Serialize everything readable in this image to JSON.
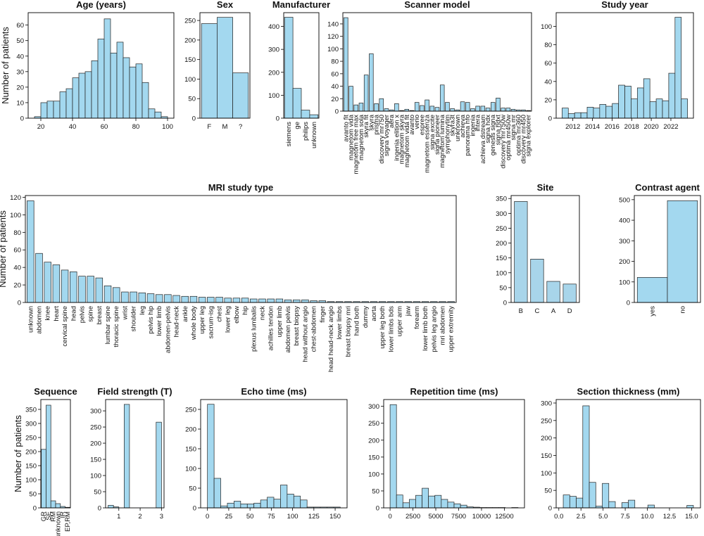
{
  "chart_data": [
    {
      "type": "histogram",
      "title": "Age (years)",
      "ylabel": "Number of patients",
      "color": "#a3d8ef",
      "bins": [
        16,
        20,
        24,
        28,
        32,
        36,
        40,
        44,
        48,
        52,
        56,
        60,
        64,
        68,
        72,
        76,
        80,
        84,
        88,
        92,
        96,
        100
      ],
      "values": [
        1,
        10,
        11,
        11,
        17,
        19,
        26,
        29,
        30,
        37,
        51,
        64,
        42,
        49,
        39,
        33,
        35,
        23,
        6,
        4,
        1
      ],
      "xlim": [
        12,
        104
      ],
      "xticks": [
        20,
        40,
        60,
        80,
        100
      ],
      "ylim": [
        0,
        68
      ],
      "yticks": [
        0,
        10,
        20,
        30,
        40,
        50,
        60
      ]
    },
    {
      "type": "bar",
      "title": "Sex",
      "color": "#a3d8ef",
      "categories": [
        "F",
        "M",
        "?"
      ],
      "values": [
        242,
        258,
        116
      ],
      "ylim": [
        0,
        270
      ],
      "yticks": [
        0,
        50,
        100,
        150,
        200,
        250
      ]
    },
    {
      "type": "bar",
      "title": "Manufacturer",
      "color": "#a3d8ef",
      "categories": [
        "siemens",
        "ge",
        "philips",
        "unknown"
      ],
      "values": [
        440,
        130,
        35,
        15
      ],
      "ylim": [
        0,
        460
      ],
      "yticks": [
        0,
        100,
        200,
        300,
        400
      ]
    },
    {
      "type": "bar",
      "title": "Scanner model",
      "color": "#a3d8ef",
      "categories": [
        "avanto fit",
        "magnetom vida",
        "magnetom free max",
        "magnetom sola",
        "skyra fit",
        "skyra",
        "prisma",
        "discovery mr750",
        "signa voyager",
        "aera",
        "ingenia elition x",
        "magnetom skyra",
        "magnetom vida fit",
        "avanto",
        "verio",
        "espree",
        "magnetom essenza",
        "signa excite",
        "signa pioneer",
        "magnetom lumina",
        "symphonytim",
        "skyra3t",
        "unknown",
        "achieva",
        "panorama hfo",
        "ingenia",
        "intera",
        "achieva dstream",
        "signa hdx",
        "genesis signa",
        "signa hdxt",
        "discovery mr750w",
        "optima mr450w",
        "signa mr",
        "optima mr360",
        "discovery mr450",
        "signa explorer"
      ],
      "values": [
        150,
        40,
        10,
        13,
        58,
        92,
        12,
        20,
        4,
        2,
        12,
        1,
        3,
        1,
        14,
        9,
        18,
        8,
        6,
        42,
        14,
        4,
        2,
        15,
        14,
        4,
        8,
        8,
        5,
        14,
        21,
        5,
        5,
        3,
        2,
        2,
        1
      ],
      "ylim": [
        0,
        158
      ],
      "yticks": [
        0,
        20,
        40,
        60,
        80,
        100,
        120,
        140
      ]
    },
    {
      "type": "histogram",
      "title": "Study year",
      "color": "#a3d8ef",
      "bins": [
        2010.9,
        2011.54,
        2012.18,
        2012.82,
        2013.46,
        2014.1,
        2014.74,
        2015.38,
        2016.02,
        2016.66,
        2017.3,
        2017.94,
        2018.58,
        2019.22,
        2019.86,
        2020.5,
        2021.14,
        2021.78,
        2022.42,
        2023.06,
        2023.7
      ],
      "values": [
        11,
        5,
        6,
        6,
        12,
        11,
        15,
        13,
        16,
        36,
        35,
        21,
        33,
        43,
        18,
        21,
        19,
        49,
        110,
        21
      ],
      "xlim": [
        2010.3,
        2024.3
      ],
      "xticks": [
        2012,
        2014,
        2016,
        2018,
        2020,
        2022
      ],
      "ylim": [
        0,
        115
      ],
      "yticks": [
        0,
        20,
        40,
        60,
        80,
        100
      ]
    },
    {
      "type": "bar",
      "title": "MRI study type",
      "ylabel": "Number of patients",
      "color": "#a3d8ef",
      "categories": [
        "unknown",
        "abdomen",
        "knee",
        "heart",
        "cervical spine",
        "head",
        "pelvis",
        "spine",
        "breast",
        "lumbar spine",
        "thoracic spine",
        "wrist",
        "shoulder",
        "leg",
        "pelvis hip",
        "lower limb",
        "abdomen-pelvis",
        "head-neck",
        "ankle",
        "whole body",
        "upper leg",
        "sacrum-isg",
        "chest",
        "lower leg",
        "elbow",
        "hip",
        "plexus lumbalis",
        "neck",
        "achilles tendon",
        "upper limb",
        "abdomen pelvis",
        "breast biopsy",
        "head without angio",
        "chest-abdomen",
        "finger",
        "head head-neck angio",
        "lower limbs",
        "breast biopsy mri",
        "hand both",
        "dummy",
        "aorta",
        "upper leg both",
        "lower limbs bds",
        "upper arm",
        "jaw",
        "forearm",
        "lower limb both",
        "pelvis leg angio",
        "mri abdomen",
        "upper extremity"
      ],
      "values": [
        116,
        56,
        46,
        43,
        37,
        35,
        30,
        30,
        28,
        19,
        17,
        12,
        12,
        11,
        10,
        9,
        9,
        8,
        7,
        7,
        6,
        6,
        6,
        5,
        5,
        5,
        4,
        4,
        4,
        4,
        3,
        3,
        3,
        2,
        2,
        1,
        1,
        1,
        1,
        1,
        1,
        1,
        1,
        1,
        1,
        1,
        1,
        1,
        1,
        1
      ],
      "ylim": [
        0,
        122
      ],
      "yticks": [
        0,
        20,
        40,
        60,
        80,
        100,
        120
      ]
    },
    {
      "type": "bar",
      "title": "Site",
      "color": "#a8d5ea",
      "categories": [
        "B",
        "C",
        "A",
        "D"
      ],
      "values": [
        340,
        146,
        71,
        62
      ],
      "ylim": [
        0,
        360
      ],
      "yticks": [
        0,
        50,
        100,
        150,
        200,
        250,
        300,
        350
      ]
    },
    {
      "type": "bar",
      "title": "Contrast agent",
      "color": "#a3d8ef",
      "categories": [
        "yes",
        "no"
      ],
      "values": [
        122,
        495
      ],
      "ylim": [
        0,
        520
      ],
      "yticks": [
        0,
        100,
        200,
        300,
        400,
        500
      ]
    },
    {
      "type": "bar",
      "title": "Sequence",
      "ylabel": "Number of patients",
      "color": "#a3d8ef",
      "categories": [
        "GR",
        "SE",
        "RM",
        "unknown",
        "IR",
        "EP,RM"
      ],
      "values": [
        208,
        365,
        25,
        15,
        5,
        2
      ],
      "ylim": [
        0,
        385
      ],
      "yticks": [
        0,
        50,
        100,
        150,
        200,
        250,
        300,
        350
      ]
    },
    {
      "type": "histogram",
      "title": "Field strength (T)",
      "color": "#a3d8ef",
      "bins": [
        0.5,
        0.75,
        1,
        1.25,
        1.5,
        1.75,
        2,
        2.25,
        2.5,
        2.75,
        3
      ],
      "values": [
        8,
        3,
        0,
        320,
        0,
        0,
        0,
        0,
        0,
        265
      ],
      "xlim": [
        0.38,
        3.12
      ],
      "xticks": [
        1,
        2,
        3
      ],
      "ylim": [
        0,
        335
      ],
      "yticks": [
        0,
        50,
        100,
        150,
        200,
        250,
        300
      ]
    },
    {
      "type": "histogram",
      "title": "Echo time (ms)",
      "color": "#a3d8ef",
      "bins": [
        0,
        7.8,
        15.6,
        23.4,
        31.2,
        39,
        46.8,
        54.6,
        62.4,
        70.2,
        78,
        85.8,
        93.6,
        101.4,
        109.2,
        117,
        124.8,
        132.6,
        140.4,
        148.2,
        156
      ],
      "values": [
        263,
        75,
        5,
        12,
        17,
        10,
        10,
        12,
        20,
        27,
        22,
        58,
        35,
        30,
        20,
        2,
        2,
        2,
        2,
        2
      ],
      "xlim": [
        -8,
        164
      ],
      "xticks": [
        0,
        25,
        50,
        75,
        100,
        125,
        150
      ],
      "ylim": [
        0,
        275
      ],
      "yticks": [
        0,
        50,
        100,
        150,
        200,
        250
      ]
    },
    {
      "type": "histogram",
      "title": "Repetition time (ms)",
      "color": "#a3d8ef",
      "bins": [
        0,
        700,
        1400,
        2100,
        2800,
        3500,
        4200,
        4900,
        5600,
        6300,
        7000,
        7700,
        8400,
        9100,
        9800,
        10500,
        11200,
        11900,
        12600,
        13300,
        14000
      ],
      "values": [
        305,
        38,
        15,
        25,
        37,
        58,
        35,
        37,
        25,
        17,
        12,
        8,
        3,
        2,
        1,
        1,
        1,
        1,
        0,
        1
      ],
      "xlim": [
        -700,
        14700
      ],
      "xticks": [
        0,
        2500,
        5000,
        7500,
        10000,
        12500
      ],
      "ylim": [
        0,
        320
      ],
      "yticks": [
        0,
        50,
        100,
        150,
        200,
        250,
        300
      ]
    },
    {
      "type": "histogram",
      "title": "Section thickness (mm)",
      "color": "#a3d8ef",
      "bins": [
        0.5,
        1.235,
        1.97,
        2.705,
        3.44,
        4.175,
        4.91,
        5.645,
        6.38,
        7.115,
        7.85,
        8.585,
        9.32,
        10.055,
        10.79,
        11.525,
        12.26,
        12.995,
        13.73,
        14.465,
        15.2
      ],
      "values": [
        37,
        33,
        28,
        292,
        73,
        5,
        70,
        18,
        0,
        15,
        22,
        0,
        0,
        8,
        0,
        0,
        0,
        0,
        0,
        7
      ],
      "xlim": [
        -0.3,
        16
      ],
      "xticks": [
        {
          "value": 0,
          "label": "0.0"
        },
        2.5,
        {
          "value": 5,
          "label": "5.0"
        },
        7.5,
        {
          "value": 10,
          "label": "10.0"
        },
        12.5,
        {
          "value": 15,
          "label": "15.0"
        }
      ],
      "ylim": [
        0,
        310
      ],
      "yticks": [
        0,
        50,
        100,
        150,
        200,
        250,
        300
      ]
    }
  ]
}
